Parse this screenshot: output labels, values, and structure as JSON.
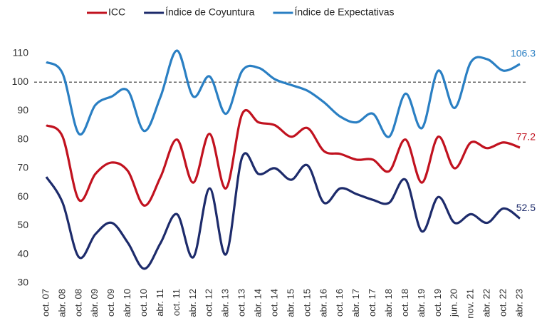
{
  "chart_data": {
    "type": "line",
    "categories": [
      "oct. 07",
      "abr. 08",
      "oct. 08",
      "abr. 09",
      "oct. 09",
      "abr. 10",
      "oct. 10",
      "abr. 11",
      "oct. 11",
      "abr. 12",
      "oct. 12",
      "abr. 13",
      "oct. 13",
      "abr. 14",
      "oct. 14",
      "abr. 15",
      "oct. 15",
      "abr. 16",
      "oct. 16",
      "abr. 17",
      "oct. 17",
      "abr. 18",
      "oct. 18",
      "abr. 19",
      "oct. 19",
      "jun. 20",
      "nov. 21",
      "abr. 22",
      "oct. 22",
      "abr. 23"
    ],
    "series": [
      {
        "name": "ICC",
        "color": "#c1121f",
        "values": [
          85,
          81,
          59,
          68,
          72,
          69,
          57,
          67,
          80,
          65,
          82,
          63,
          89,
          86,
          85,
          81,
          84,
          76,
          75,
          73,
          73,
          69,
          80,
          65,
          81,
          70,
          79,
          77,
          79,
          77.2
        ]
      },
      {
        "name": "Índice de Coyuntura",
        "color": "#1d2b6b",
        "values": [
          67,
          58,
          39,
          47,
          51,
          44,
          35,
          44,
          54,
          39,
          63,
          40,
          74,
          68,
          70,
          66,
          71,
          58,
          63,
          61,
          59,
          58,
          66,
          48,
          60,
          51,
          54,
          51,
          56,
          52.5
        ]
      },
      {
        "name": "Índice de Expectativas",
        "color": "#2a7fc3",
        "values": [
          107,
          103,
          82,
          92,
          95,
          97,
          83,
          95,
          111,
          95,
          102,
          89,
          104,
          105,
          101,
          99,
          97,
          93,
          88,
          86,
          89,
          81,
          96,
          84,
          104,
          91,
          107,
          108,
          104,
          106.3
        ]
      }
    ],
    "ylim": [
      30,
      110
    ],
    "yticks": [
      30,
      40,
      50,
      60,
      70,
      80,
      90,
      100,
      110
    ],
    "reference_line": 100,
    "grid": false,
    "smooth": true,
    "legend": "top"
  }
}
